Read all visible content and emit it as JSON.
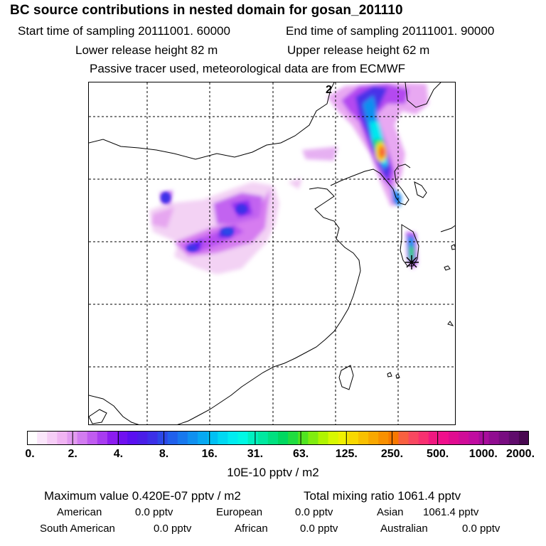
{
  "header": {
    "title": "BC  source contributions in nested domain for gosan_201110",
    "start_label": "Start time of sampling 20111001. 60000",
    "end_label": "End time of sampling 20111001. 90000",
    "lower_label": "Lower release height   82 m",
    "upper_label": "Upper release height   62 m",
    "tracer_note": "Passive tracer used, meteorological data are from ECMWF"
  },
  "chart_data": {
    "type": "heatmap",
    "title": "BC  source contributions in nested domain for gosan_201110",
    "plume_marker_label": "2",
    "colorbar": {
      "unit": "10E-10 pptv / m2",
      "ticks": [
        "0.",
        "2.",
        "4.",
        "8.",
        "16.",
        "31.",
        "63.",
        "125.",
        "250.",
        "500.",
        "1000.",
        "2000."
      ],
      "colors": [
        "#ffffff",
        "#fbe6fb",
        "#f6cdf6",
        "#f0b4f2",
        "#e29bf0",
        "#d27cf0",
        "#c05cf0",
        "#a83cf0",
        "#8c1cf0",
        "#7010f0",
        "#5a10f0",
        "#4a1ee8",
        "#3c30e8",
        "#2c48e8",
        "#2060ec",
        "#1878ee",
        "#1090f0",
        "#08a8f2",
        "#00c0f4",
        "#00d8f2",
        "#00ecf0",
        "#00f8e4",
        "#00f0c0",
        "#00e8a0",
        "#00e080",
        "#00d860",
        "#20dc40",
        "#50e420",
        "#80ec10",
        "#b0f400",
        "#d8f800",
        "#f0f000",
        "#f8d800",
        "#f8c000",
        "#f8a800",
        "#f89000",
        "#f87800",
        "#f86040",
        "#f84860",
        "#f83070",
        "#f01880",
        "#f0108c",
        "#e00c90",
        "#d00c98",
        "#c00ca0",
        "#a80c9c",
        "#900c90",
        "#780c80",
        "#600c6c",
        "#480850"
      ]
    }
  },
  "summary": {
    "maximum": "Maximum value  0.420E-07 pptv / m2",
    "total": "Total mixing ratio     1061.4 pptv",
    "regions": [
      {
        "name": "American",
        "value": "0.0 pptv"
      },
      {
        "name": "European",
        "value": "0.0 pptv"
      },
      {
        "name": "Asian",
        "value": "1061.4 pptv"
      },
      {
        "name": "South American",
        "value": "0.0 pptv"
      },
      {
        "name": "African",
        "value": "0.0 pptv"
      },
      {
        "name": "Australian",
        "value": "0.0 pptv"
      }
    ]
  }
}
